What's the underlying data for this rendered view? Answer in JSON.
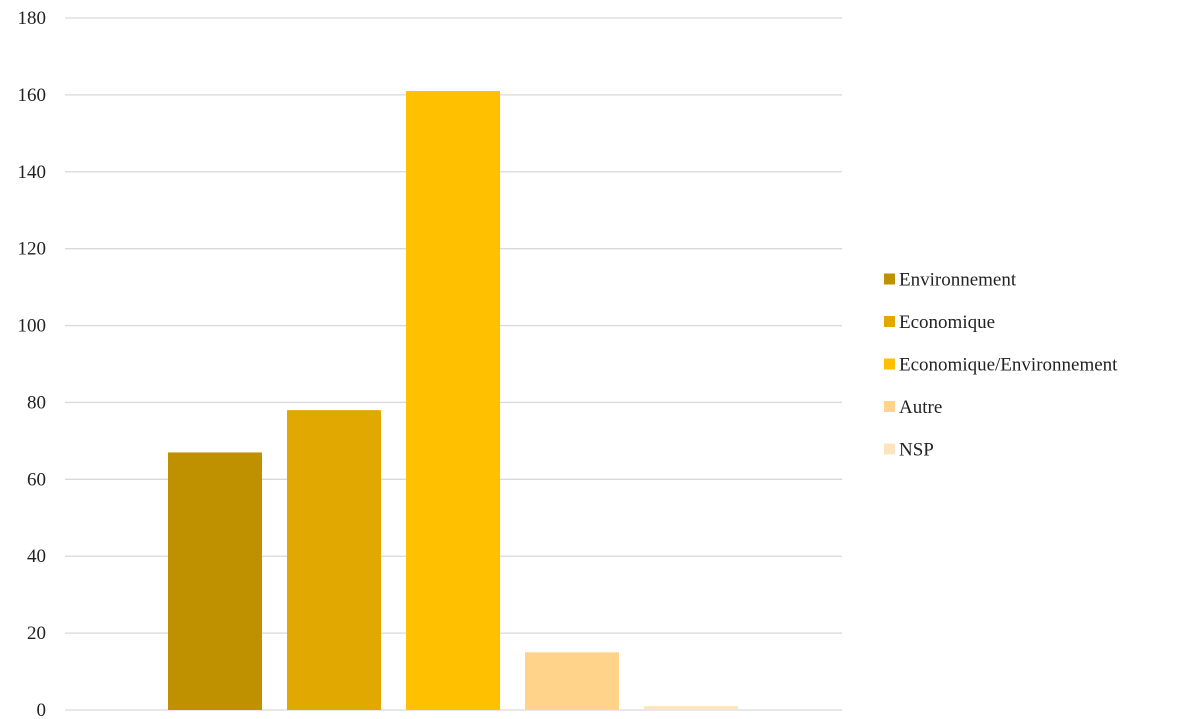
{
  "chart_data": {
    "type": "bar",
    "title": "",
    "xlabel": "",
    "ylabel": "",
    "ylim": [
      0,
      180
    ],
    "yticks": [
      0,
      20,
      40,
      60,
      80,
      100,
      120,
      140,
      160,
      180
    ],
    "grid": true,
    "legend_position": "right",
    "series": [
      {
        "name": "Environnement",
        "value": 67,
        "color": "#BF9000"
      },
      {
        "name": "Economique",
        "value": 78,
        "color": "#E0A800"
      },
      {
        "name": "Economique/Environnement",
        "value": 161,
        "color": "#FFC000"
      },
      {
        "name": "Autre",
        "value": 15,
        "color": "#FFD38A"
      },
      {
        "name": "NSP",
        "value": 1,
        "color": "#FCE4C2"
      }
    ]
  }
}
